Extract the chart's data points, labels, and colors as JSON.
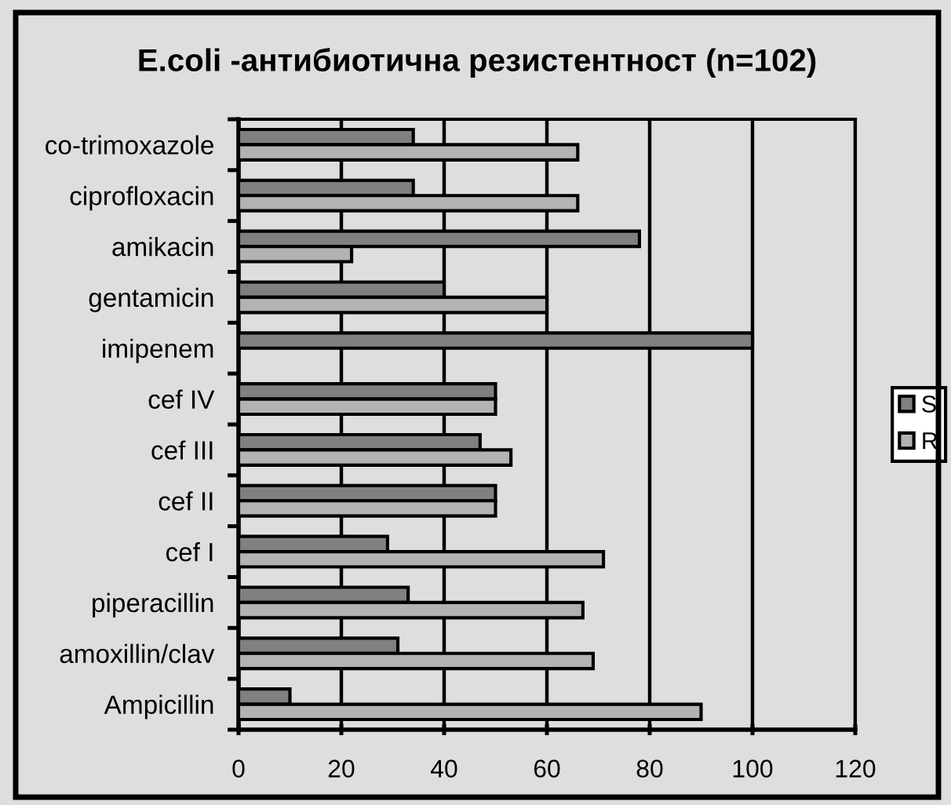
{
  "chart_data": {
    "type": "bar",
    "orientation": "horizontal",
    "title": "E.coli -антибиотична резистентност (n=102)",
    "categories": [
      "co-trimoxazole",
      "ciprofloxacin",
      "amikacin",
      "gentamicin",
      "imipenem",
      "cef IV",
      "cef III",
      "cef II",
      "cef I",
      "piperacillin",
      "amoxillin/clav",
      "Ampicillin"
    ],
    "series": [
      {
        "name": "S",
        "color": "#808080",
        "values": [
          34,
          34,
          78,
          40,
          100,
          50,
          47,
          50,
          29,
          33,
          31,
          10
        ]
      },
      {
        "name": "R",
        "color": "#b3b3b3",
        "values": [
          66,
          66,
          22,
          60,
          null,
          50,
          53,
          50,
          71,
          67,
          69,
          90
        ]
      }
    ],
    "xlim": [
      0,
      120
    ],
    "xticks": [
      0,
      20,
      40,
      60,
      80,
      100,
      120
    ],
    "grid": "x",
    "legend": "right"
  }
}
